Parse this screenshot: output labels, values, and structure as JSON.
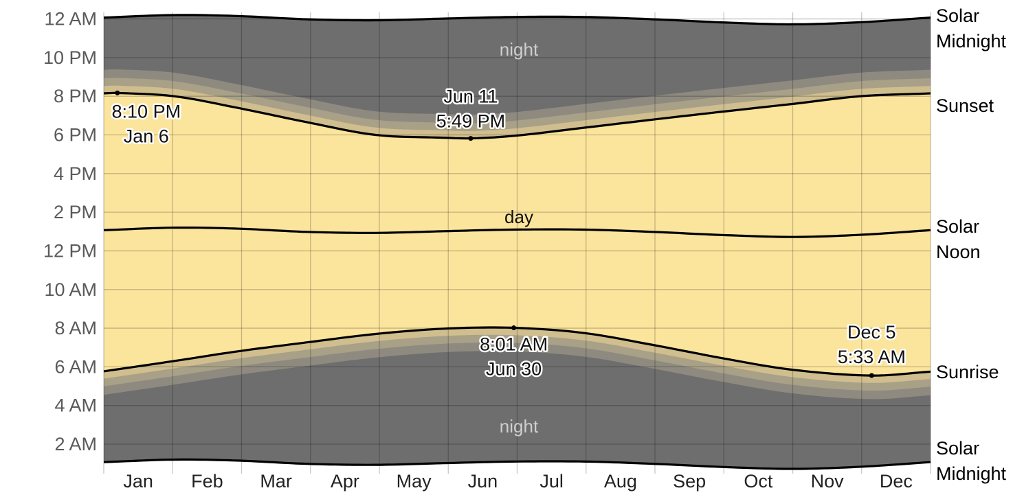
{
  "colors": {
    "night": "#6e6e6e",
    "day": "#fbe49c",
    "twilight": [
      "#d0be8f",
      "#a8a087",
      "#8e8a80"
    ],
    "grid": "#000000",
    "curve": "#000000"
  },
  "chart_data": {
    "type": "area",
    "months": [
      "Jan",
      "Feb",
      "Mar",
      "Apr",
      "May",
      "Jun",
      "Jul",
      "Aug",
      "Sep",
      "Oct",
      "Nov",
      "Dec"
    ],
    "y_tick_labels": [
      "2 AM",
      "4 AM",
      "6 AM",
      "8 AM",
      "10 AM",
      "12 PM",
      "2 PM",
      "4 PM",
      "6 PM",
      "8 PM",
      "10 PM",
      "12 AM"
    ],
    "y_tick_hours": [
      2,
      4,
      6,
      8,
      10,
      12,
      14,
      16,
      18,
      20,
      22,
      24
    ],
    "ylim_hours": [
      0.97,
      24.34
    ],
    "grid": true,
    "region_labels": {
      "night_top": "night",
      "night_bottom": "night",
      "day": "day"
    },
    "right_labels": {
      "solar_midnight_top": [
        "Solar",
        "Midnight"
      ],
      "sunset": "Sunset",
      "solar_noon": [
        "Solar",
        "Noon"
      ],
      "sunrise": "Sunrise",
      "solar_midnight_bottom": [
        "Solar",
        "Midnight"
      ]
    },
    "series": [
      {
        "key": "solar_midnight_top",
        "day_of_year": [
          0,
          31,
          59,
          90,
          120,
          151,
          181,
          212,
          243,
          273,
          304,
          334,
          365
        ],
        "hour": [
          24.07,
          24.2,
          24.15,
          23.98,
          23.93,
          24.02,
          24.1,
          24.1,
          23.98,
          23.82,
          23.72,
          23.83,
          24.07
        ]
      },
      {
        "key": "sunset",
        "day_of_year": [
          0,
          6,
          31,
          59,
          90,
          120,
          151,
          162,
          181,
          212,
          243,
          273,
          304,
          334,
          365
        ],
        "hour": [
          20.15,
          20.17,
          20.0,
          19.4,
          18.65,
          18.0,
          17.85,
          17.82,
          17.95,
          18.37,
          18.8,
          19.2,
          19.6,
          20.0,
          20.15
        ]
      },
      {
        "key": "solar_noon",
        "day_of_year": [
          0,
          31,
          59,
          90,
          120,
          151,
          181,
          212,
          243,
          273,
          304,
          334,
          365
        ],
        "hour": [
          13.07,
          13.2,
          13.15,
          12.98,
          12.93,
          13.02,
          13.1,
          13.1,
          12.98,
          12.82,
          12.72,
          12.83,
          13.07
        ]
      },
      {
        "key": "sunrise",
        "day_of_year": [
          0,
          31,
          59,
          90,
          120,
          151,
          181,
          212,
          243,
          273,
          304,
          339,
          365
        ],
        "hour": [
          5.77,
          6.3,
          6.8,
          7.27,
          7.7,
          7.98,
          8.02,
          7.75,
          7.12,
          6.45,
          5.85,
          5.55,
          5.75
        ]
      }
    ],
    "twilight_offsets_hours": [
      0.38,
      0.78,
      1.22
    ],
    "annotations": [
      {
        "lines": [
          "8:10 PM",
          "Jan 6"
        ],
        "day_of_year": 6,
        "hour": 20.17
      },
      {
        "lines": [
          "Jun 11",
          "5:49 PM"
        ],
        "day_of_year": 162,
        "hour": 17.82
      },
      {
        "lines": [
          "8:01 AM",
          "Jun 30"
        ],
        "day_of_year": 181,
        "hour": 8.02
      },
      {
        "lines": [
          "Dec 5",
          "5:33 AM"
        ],
        "day_of_year": 339,
        "hour": 5.55
      }
    ]
  }
}
